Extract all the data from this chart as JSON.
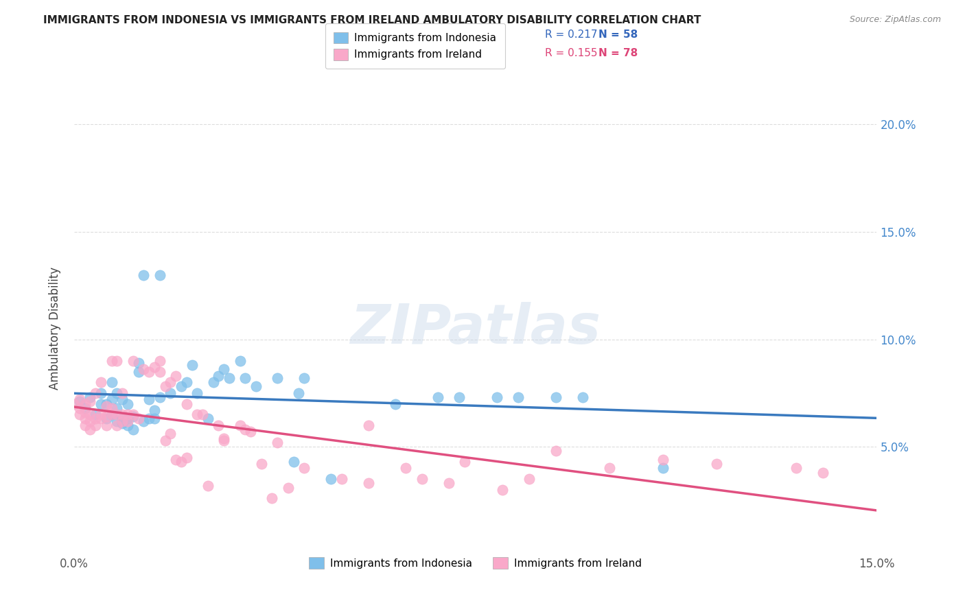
{
  "title": "IMMIGRANTS FROM INDONESIA VS IMMIGRANTS FROM IRELAND AMBULATORY DISABILITY CORRELATION CHART",
  "source": "Source: ZipAtlas.com",
  "ylabel": "Ambulatory Disability",
  "xlim": [
    0.0,
    0.15
  ],
  "ylim": [
    0.0,
    0.21
  ],
  "xticks": [
    0.0,
    0.03,
    0.06,
    0.09,
    0.12,
    0.15
  ],
  "xticklabels": [
    "0.0%",
    "",
    "",
    "",
    "",
    "15.0%"
  ],
  "yticks": [
    0.05,
    0.1,
    0.15,
    0.2
  ],
  "yticklabels_right": [
    "5.0%",
    "10.0%",
    "15.0%",
    "20.0%"
  ],
  "R_indonesia": 0.217,
  "N_indonesia": 58,
  "R_ireland": 0.155,
  "N_ireland": 78,
  "color_indonesia": "#7fbfea",
  "color_ireland": "#f9a8c9",
  "trendline_color_indonesia": "#3a7abf",
  "trendline_color_ireland": "#e05080",
  "watermark": "ZIPatlas",
  "indonesia_x": [
    0.001,
    0.002,
    0.003,
    0.004,
    0.005,
    0.005,
    0.006,
    0.006,
    0.007,
    0.007,
    0.007,
    0.008,
    0.008,
    0.008,
    0.009,
    0.009,
    0.009,
    0.01,
    0.01,
    0.01,
    0.011,
    0.011,
    0.012,
    0.012,
    0.013,
    0.013,
    0.014,
    0.014,
    0.015,
    0.015,
    0.016,
    0.016,
    0.018,
    0.02,
    0.021,
    0.022,
    0.023,
    0.025,
    0.026,
    0.027,
    0.028,
    0.029,
    0.031,
    0.032,
    0.034,
    0.038,
    0.041,
    0.042,
    0.043,
    0.048,
    0.06,
    0.068,
    0.072,
    0.079,
    0.083,
    0.09,
    0.095,
    0.11
  ],
  "indonesia_y": [
    0.071,
    0.068,
    0.073,
    0.065,
    0.07,
    0.075,
    0.063,
    0.07,
    0.065,
    0.072,
    0.08,
    0.062,
    0.068,
    0.075,
    0.061,
    0.063,
    0.072,
    0.06,
    0.063,
    0.07,
    0.058,
    0.064,
    0.085,
    0.089,
    0.062,
    0.13,
    0.063,
    0.072,
    0.063,
    0.067,
    0.073,
    0.13,
    0.075,
    0.078,
    0.08,
    0.088,
    0.075,
    0.063,
    0.08,
    0.083,
    0.086,
    0.082,
    0.09,
    0.082,
    0.078,
    0.082,
    0.043,
    0.075,
    0.082,
    0.035,
    0.07,
    0.073,
    0.073,
    0.073,
    0.073,
    0.073,
    0.073,
    0.04
  ],
  "ireland_x": [
    0.0,
    0.001,
    0.001,
    0.001,
    0.002,
    0.002,
    0.002,
    0.002,
    0.003,
    0.003,
    0.003,
    0.003,
    0.004,
    0.004,
    0.004,
    0.005,
    0.005,
    0.005,
    0.006,
    0.006,
    0.006,
    0.007,
    0.007,
    0.007,
    0.008,
    0.008,
    0.008,
    0.009,
    0.009,
    0.009,
    0.01,
    0.01,
    0.011,
    0.011,
    0.012,
    0.013,
    0.014,
    0.015,
    0.016,
    0.016,
    0.017,
    0.018,
    0.019,
    0.02,
    0.021,
    0.023,
    0.025,
    0.027,
    0.028,
    0.031,
    0.032,
    0.035,
    0.037,
    0.04,
    0.043,
    0.024,
    0.021,
    0.019,
    0.018,
    0.017,
    0.028,
    0.033,
    0.038,
    0.05,
    0.055,
    0.062,
    0.07,
    0.08,
    0.055,
    0.065,
    0.073,
    0.085,
    0.09,
    0.1,
    0.11,
    0.12,
    0.135,
    0.14
  ],
  "ireland_y": [
    0.07,
    0.065,
    0.068,
    0.072,
    0.06,
    0.063,
    0.066,
    0.07,
    0.058,
    0.062,
    0.065,
    0.071,
    0.06,
    0.063,
    0.075,
    0.063,
    0.065,
    0.08,
    0.06,
    0.064,
    0.069,
    0.065,
    0.068,
    0.09,
    0.06,
    0.065,
    0.09,
    0.062,
    0.065,
    0.075,
    0.062,
    0.065,
    0.065,
    0.09,
    0.063,
    0.086,
    0.085,
    0.087,
    0.085,
    0.09,
    0.078,
    0.08,
    0.083,
    0.043,
    0.07,
    0.065,
    0.032,
    0.06,
    0.053,
    0.06,
    0.058,
    0.042,
    0.026,
    0.031,
    0.04,
    0.065,
    0.045,
    0.044,
    0.056,
    0.053,
    0.054,
    0.057,
    0.052,
    0.035,
    0.033,
    0.04,
    0.033,
    0.03,
    0.06,
    0.035,
    0.043,
    0.035,
    0.048,
    0.04,
    0.044,
    0.042,
    0.04,
    0.038
  ]
}
